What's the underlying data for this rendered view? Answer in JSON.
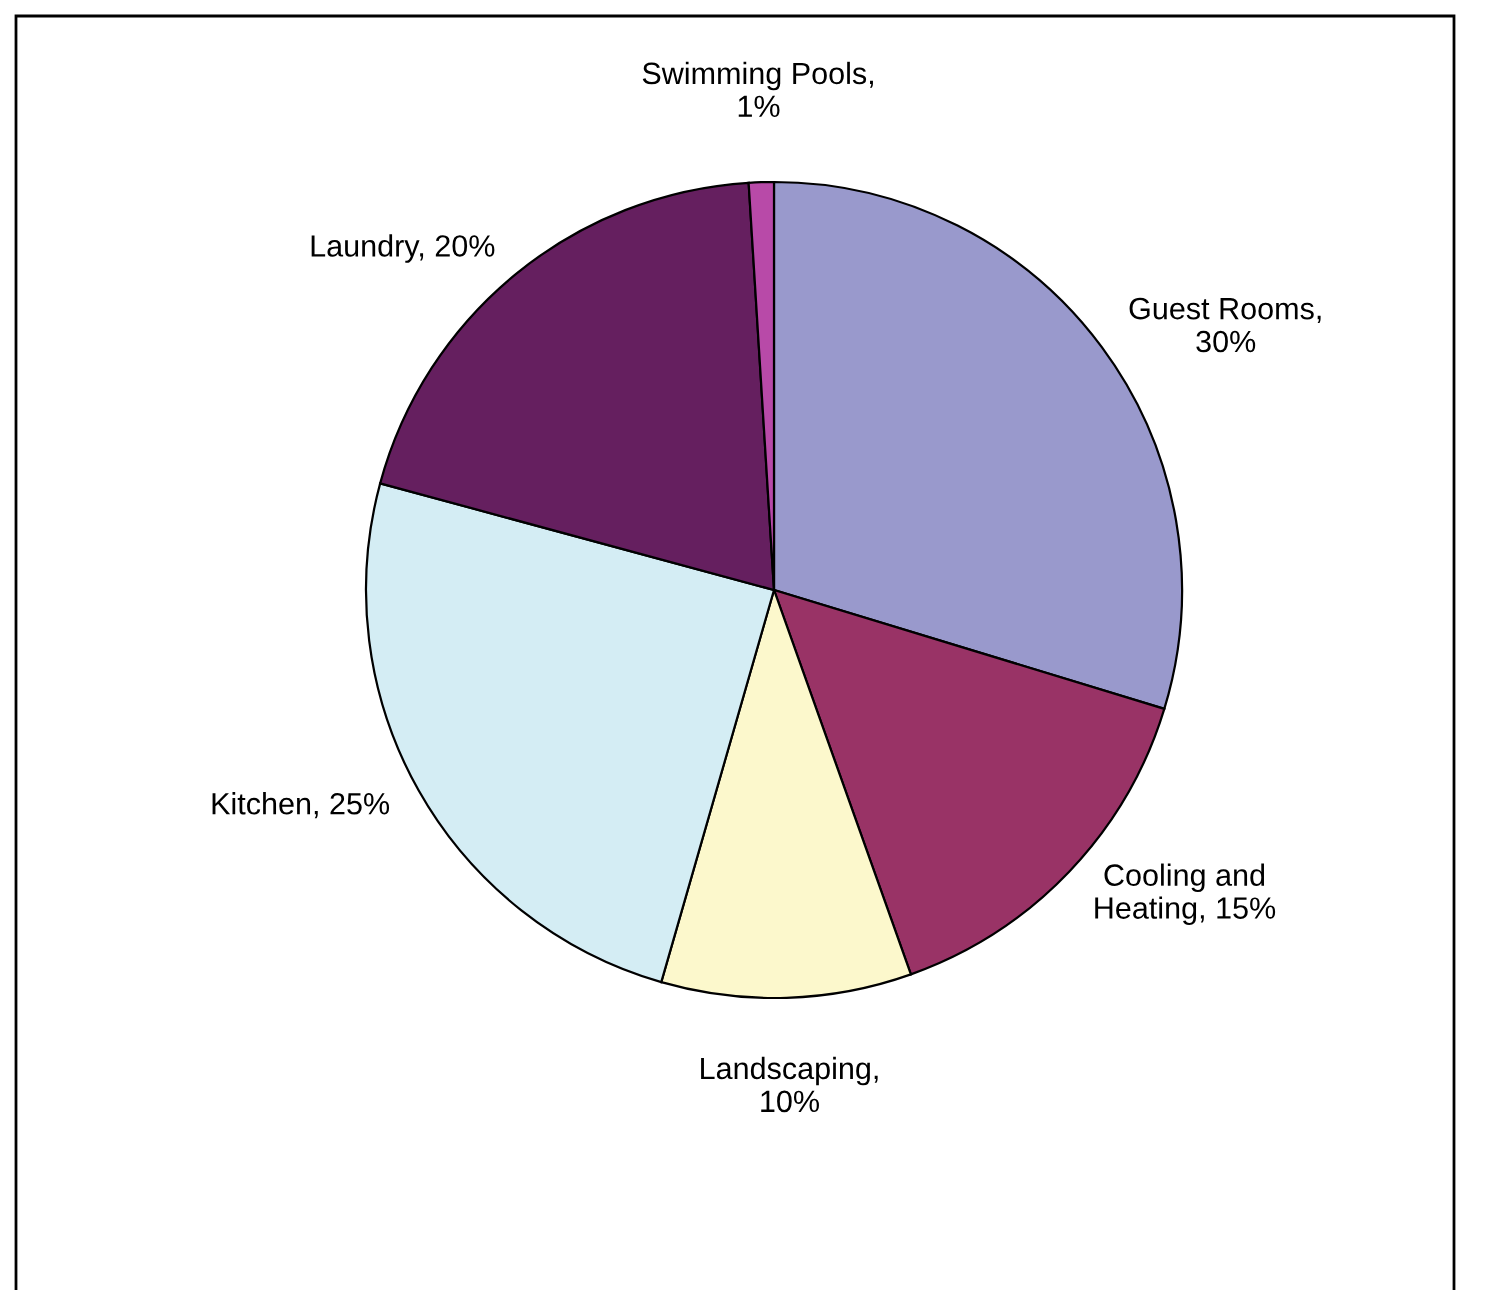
{
  "chart_data": {
    "type": "pie",
    "categories": [
      "Guest Rooms",
      "Cooling and Heating",
      "Landscaping",
      "Kitchen",
      "Laundry",
      "Swimming Pools"
    ],
    "values": [
      30,
      15,
      10,
      25,
      20,
      1
    ],
    "value_labels": [
      ", 30%",
      ", 15%",
      ", 10%",
      ", 25%",
      ", 20%",
      ", 1%"
    ],
    "colors": [
      "#9999cc",
      "#993366",
      "#fcf8cc",
      "#d4edf4",
      "#651f5f",
      "#b84aa8"
    ],
    "legend": false
  }
}
